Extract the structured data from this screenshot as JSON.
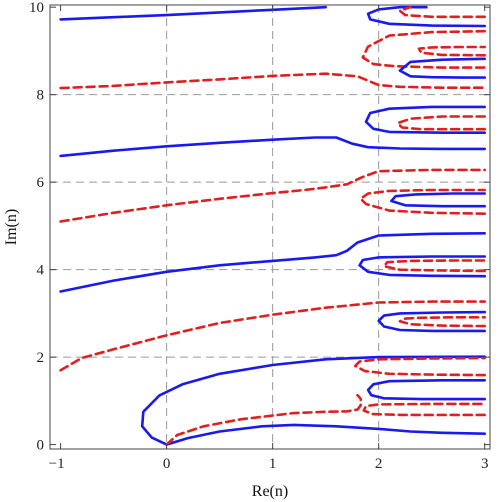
{
  "chart_data": {
    "type": "line",
    "title": "",
    "xlabel": "Re(n)",
    "ylabel": "Im(n)",
    "xlim": [
      -1.1,
      3.05
    ],
    "ylim": [
      -0.1,
      10.05
    ],
    "xticks": [
      -1,
      0,
      1,
      2,
      3
    ],
    "yticks": [
      0,
      2,
      4,
      6,
      8,
      10
    ],
    "grid_x": [
      0,
      1,
      2
    ],
    "grid_y": [
      2,
      4,
      6,
      8
    ],
    "colors": {
      "solid": "#1a1aee",
      "dashed": "#e02020"
    },
    "series": [
      {
        "style": "solid",
        "points": [
          [
            0,
            0
          ],
          [
            -0.14,
            0.16
          ],
          [
            -0.23,
            0.42
          ],
          [
            -0.22,
            0.75
          ],
          [
            -0.07,
            1.12
          ],
          [
            0.15,
            1.38
          ],
          [
            0.5,
            1.62
          ],
          [
            1.0,
            1.82
          ],
          [
            1.5,
            1.95
          ],
          [
            2.0,
            2.0
          ],
          [
            3.0,
            2.01
          ]
        ]
      },
      {
        "style": "solid",
        "points": [
          [
            0,
            0
          ],
          [
            0.2,
            0.15
          ],
          [
            0.5,
            0.3
          ],
          [
            0.9,
            0.42
          ],
          [
            1.2,
            0.45
          ],
          [
            1.6,
            0.42
          ],
          [
            2.0,
            0.36
          ],
          [
            2.3,
            0.3
          ],
          [
            2.6,
            0.27
          ],
          [
            3.0,
            0.25
          ]
        ]
      },
      {
        "style": "dashed",
        "points": [
          [
            0,
            0
          ],
          [
            0.1,
            0.22
          ],
          [
            0.35,
            0.42
          ],
          [
            0.7,
            0.58
          ],
          [
            1.2,
            0.72
          ],
          [
            1.5,
            0.75
          ],
          [
            1.7,
            0.76
          ],
          [
            1.8,
            0.8
          ],
          [
            1.83,
            0.9
          ],
          [
            1.83,
            1.05
          ],
          [
            1.8,
            1.13
          ]
        ]
      },
      {
        "style": "dashed",
        "points": [
          [
            3.0,
            0.68
          ],
          [
            2.6,
            0.68
          ],
          [
            2.2,
            0.68
          ],
          [
            1.94,
            0.7
          ],
          [
            1.86,
            0.78
          ],
          [
            1.88,
            0.88
          ],
          [
            2.0,
            0.92
          ],
          [
            2.5,
            0.93
          ],
          [
            3.0,
            0.93
          ]
        ]
      },
      {
        "style": "solid",
        "points": [
          [
            3.0,
            1.04
          ],
          [
            2.4,
            1.04
          ],
          [
            2.05,
            1.06
          ],
          [
            1.93,
            1.13
          ],
          [
            1.9,
            1.25
          ],
          [
            1.95,
            1.38
          ],
          [
            2.1,
            1.45
          ],
          [
            2.6,
            1.47
          ],
          [
            3.0,
            1.47
          ]
        ]
      },
      {
        "style": "dashed",
        "points": [
          [
            3.0,
            1.59
          ],
          [
            2.5,
            1.6
          ],
          [
            2.1,
            1.62
          ],
          [
            1.87,
            1.68
          ],
          [
            1.78,
            1.8
          ],
          [
            1.82,
            1.9
          ],
          [
            2.0,
            1.95
          ],
          [
            2.5,
            1.97
          ],
          [
            3.0,
            1.98
          ]
        ]
      },
      {
        "style": "dashed",
        "points": [
          [
            -1.0,
            1.7
          ],
          [
            -0.8,
            1.98
          ],
          [
            -0.5,
            2.18
          ],
          [
            0,
            2.5
          ],
          [
            0.5,
            2.78
          ],
          [
            1.0,
            2.97
          ],
          [
            1.5,
            3.13
          ],
          [
            1.8,
            3.2
          ],
          [
            2.0,
            3.25
          ],
          [
            2.5,
            3.27
          ],
          [
            3.0,
            3.27
          ]
        ]
      },
      {
        "style": "solid",
        "points": [
          [
            3.0,
            2.6
          ],
          [
            2.5,
            2.6
          ],
          [
            2.2,
            2.62
          ],
          [
            2.05,
            2.7
          ],
          [
            2.0,
            2.83
          ],
          [
            2.05,
            2.95
          ],
          [
            2.2,
            3.0
          ],
          [
            2.6,
            3.02
          ],
          [
            3.0,
            3.03
          ]
        ]
      },
      {
        "style": "dashed",
        "points": [
          [
            3.0,
            2.71
          ],
          [
            2.6,
            2.72
          ],
          [
            2.3,
            2.75
          ],
          [
            2.2,
            2.82
          ],
          [
            2.25,
            2.88
          ],
          [
            2.4,
            2.9
          ],
          [
            2.7,
            2.91
          ],
          [
            3.0,
            2.91
          ]
        ]
      },
      {
        "style": "solid",
        "points": [
          [
            -1.0,
            3.5
          ],
          [
            -0.5,
            3.75
          ],
          [
            0,
            3.95
          ],
          [
            0.5,
            4.1
          ],
          [
            1.0,
            4.2
          ],
          [
            1.4,
            4.28
          ],
          [
            1.6,
            4.33
          ],
          [
            1.7,
            4.43
          ],
          [
            1.8,
            4.62
          ],
          [
            2.0,
            4.78
          ],
          [
            2.5,
            4.82
          ],
          [
            3.0,
            4.83
          ]
        ]
      },
      {
        "style": "solid",
        "points": [
          [
            3.0,
            3.85
          ],
          [
            2.5,
            3.86
          ],
          [
            2.1,
            3.88
          ],
          [
            1.9,
            3.95
          ],
          [
            1.82,
            4.1
          ],
          [
            1.85,
            4.22
          ],
          [
            2.0,
            4.28
          ],
          [
            2.5,
            4.3
          ],
          [
            3.0,
            4.3
          ]
        ]
      },
      {
        "style": "dashed",
        "points": [
          [
            3.0,
            3.97
          ],
          [
            2.6,
            3.98
          ],
          [
            2.2,
            4.0
          ],
          [
            2.05,
            4.08
          ],
          [
            2.08,
            4.17
          ],
          [
            2.3,
            4.2
          ],
          [
            2.7,
            4.21
          ],
          [
            3.0,
            4.21
          ]
        ]
      },
      {
        "style": "dashed",
        "points": [
          [
            -1.0,
            5.1
          ],
          [
            -0.5,
            5.3
          ],
          [
            0,
            5.47
          ],
          [
            0.5,
            5.62
          ],
          [
            1.0,
            5.75
          ],
          [
            1.3,
            5.82
          ],
          [
            1.5,
            5.88
          ],
          [
            1.7,
            5.95
          ],
          [
            1.85,
            6.12
          ],
          [
            2.0,
            6.25
          ],
          [
            2.5,
            6.28
          ],
          [
            3.0,
            6.28
          ]
        ]
      },
      {
        "style": "dashed",
        "points": [
          [
            3.0,
            5.28
          ],
          [
            2.5,
            5.3
          ],
          [
            2.1,
            5.35
          ],
          [
            1.88,
            5.5
          ],
          [
            1.83,
            5.62
          ],
          [
            1.9,
            5.74
          ],
          [
            2.1,
            5.8
          ],
          [
            2.5,
            5.82
          ],
          [
            3.0,
            5.82
          ]
        ]
      },
      {
        "style": "solid",
        "points": [
          [
            3.0,
            5.45
          ],
          [
            2.6,
            5.45
          ],
          [
            2.25,
            5.47
          ],
          [
            2.12,
            5.57
          ],
          [
            2.16,
            5.68
          ],
          [
            2.35,
            5.72
          ],
          [
            2.7,
            5.74
          ],
          [
            3.0,
            5.74
          ]
        ]
      },
      {
        "style": "solid",
        "points": [
          [
            -1.0,
            6.6
          ],
          [
            -0.5,
            6.72
          ],
          [
            0,
            6.82
          ],
          [
            0.5,
            6.9
          ],
          [
            1.0,
            6.97
          ],
          [
            1.4,
            7.02
          ],
          [
            1.6,
            7.02
          ],
          [
            1.75,
            6.88
          ],
          [
            1.9,
            6.8
          ],
          [
            2.2,
            6.77
          ],
          [
            2.6,
            6.76
          ],
          [
            3.0,
            6.76
          ]
        ]
      },
      {
        "style": "solid",
        "points": [
          [
            3.0,
            7.72
          ],
          [
            2.5,
            7.72
          ],
          [
            2.1,
            7.68
          ],
          [
            1.92,
            7.58
          ],
          [
            1.88,
            7.38
          ],
          [
            1.95,
            7.22
          ],
          [
            2.1,
            7.15
          ],
          [
            2.6,
            7.13
          ],
          [
            3.0,
            7.13
          ]
        ]
      },
      {
        "style": "dashed",
        "points": [
          [
            3.0,
            7.5
          ],
          [
            2.6,
            7.5
          ],
          [
            2.3,
            7.45
          ],
          [
            2.18,
            7.35
          ],
          [
            2.22,
            7.25
          ],
          [
            2.4,
            7.21
          ],
          [
            2.7,
            7.21
          ],
          [
            3.0,
            7.21
          ]
        ]
      },
      {
        "style": "dashed",
        "points": [
          [
            -1.0,
            8.15
          ],
          [
            -0.5,
            8.2
          ],
          [
            0,
            8.28
          ],
          [
            0.5,
            8.35
          ],
          [
            1.0,
            8.43
          ],
          [
            1.5,
            8.48
          ],
          [
            1.8,
            8.42
          ],
          [
            2.0,
            8.22
          ],
          [
            2.2,
            8.18
          ],
          [
            2.6,
            8.16
          ],
          [
            3.0,
            8.16
          ]
        ]
      },
      {
        "style": "dashed",
        "points": [
          [
            3.0,
            9.45
          ],
          [
            2.5,
            9.43
          ],
          [
            2.1,
            9.35
          ],
          [
            1.9,
            9.1
          ],
          [
            1.85,
            8.85
          ],
          [
            1.95,
            8.7
          ],
          [
            2.15,
            8.65
          ],
          [
            2.6,
            8.62
          ],
          [
            3.0,
            8.62
          ]
        ]
      },
      {
        "style": "solid",
        "points": [
          [
            3.0,
            8.82
          ],
          [
            2.6,
            8.8
          ],
          [
            2.3,
            8.75
          ],
          [
            2.2,
            8.55
          ],
          [
            2.3,
            8.42
          ],
          [
            2.5,
            8.4
          ],
          [
            2.8,
            8.39
          ],
          [
            3.0,
            8.39
          ]
        ]
      },
      {
        "style": "dashed",
        "points": [
          [
            3.0,
            8.9
          ],
          [
            2.6,
            8.91
          ],
          [
            2.4,
            8.96
          ],
          [
            2.38,
            9.05
          ],
          [
            2.5,
            9.08
          ],
          [
            2.8,
            9.09
          ],
          [
            3.0,
            9.09
          ]
        ]
      },
      {
        "style": "solid",
        "points": [
          [
            -1.0,
            9.72
          ],
          [
            -0.5,
            9.77
          ],
          [
            0,
            9.82
          ],
          [
            0.5,
            9.88
          ],
          [
            1.0,
            9.94
          ],
          [
            1.5,
            10.0
          ]
        ]
      },
      {
        "style": "solid",
        "points": [
          [
            2.45,
            10.0
          ],
          [
            2.2,
            10.0
          ],
          [
            2.0,
            9.95
          ],
          [
            1.9,
            9.85
          ],
          [
            1.92,
            9.72
          ],
          [
            2.1,
            9.62
          ],
          [
            2.5,
            9.58
          ],
          [
            3.0,
            9.57
          ]
        ]
      },
      {
        "style": "dashed",
        "points": [
          [
            3.0,
            9.78
          ],
          [
            2.5,
            9.78
          ],
          [
            2.25,
            9.82
          ],
          [
            2.2,
            9.92
          ],
          [
            2.3,
            10.0
          ]
        ]
      }
    ]
  }
}
